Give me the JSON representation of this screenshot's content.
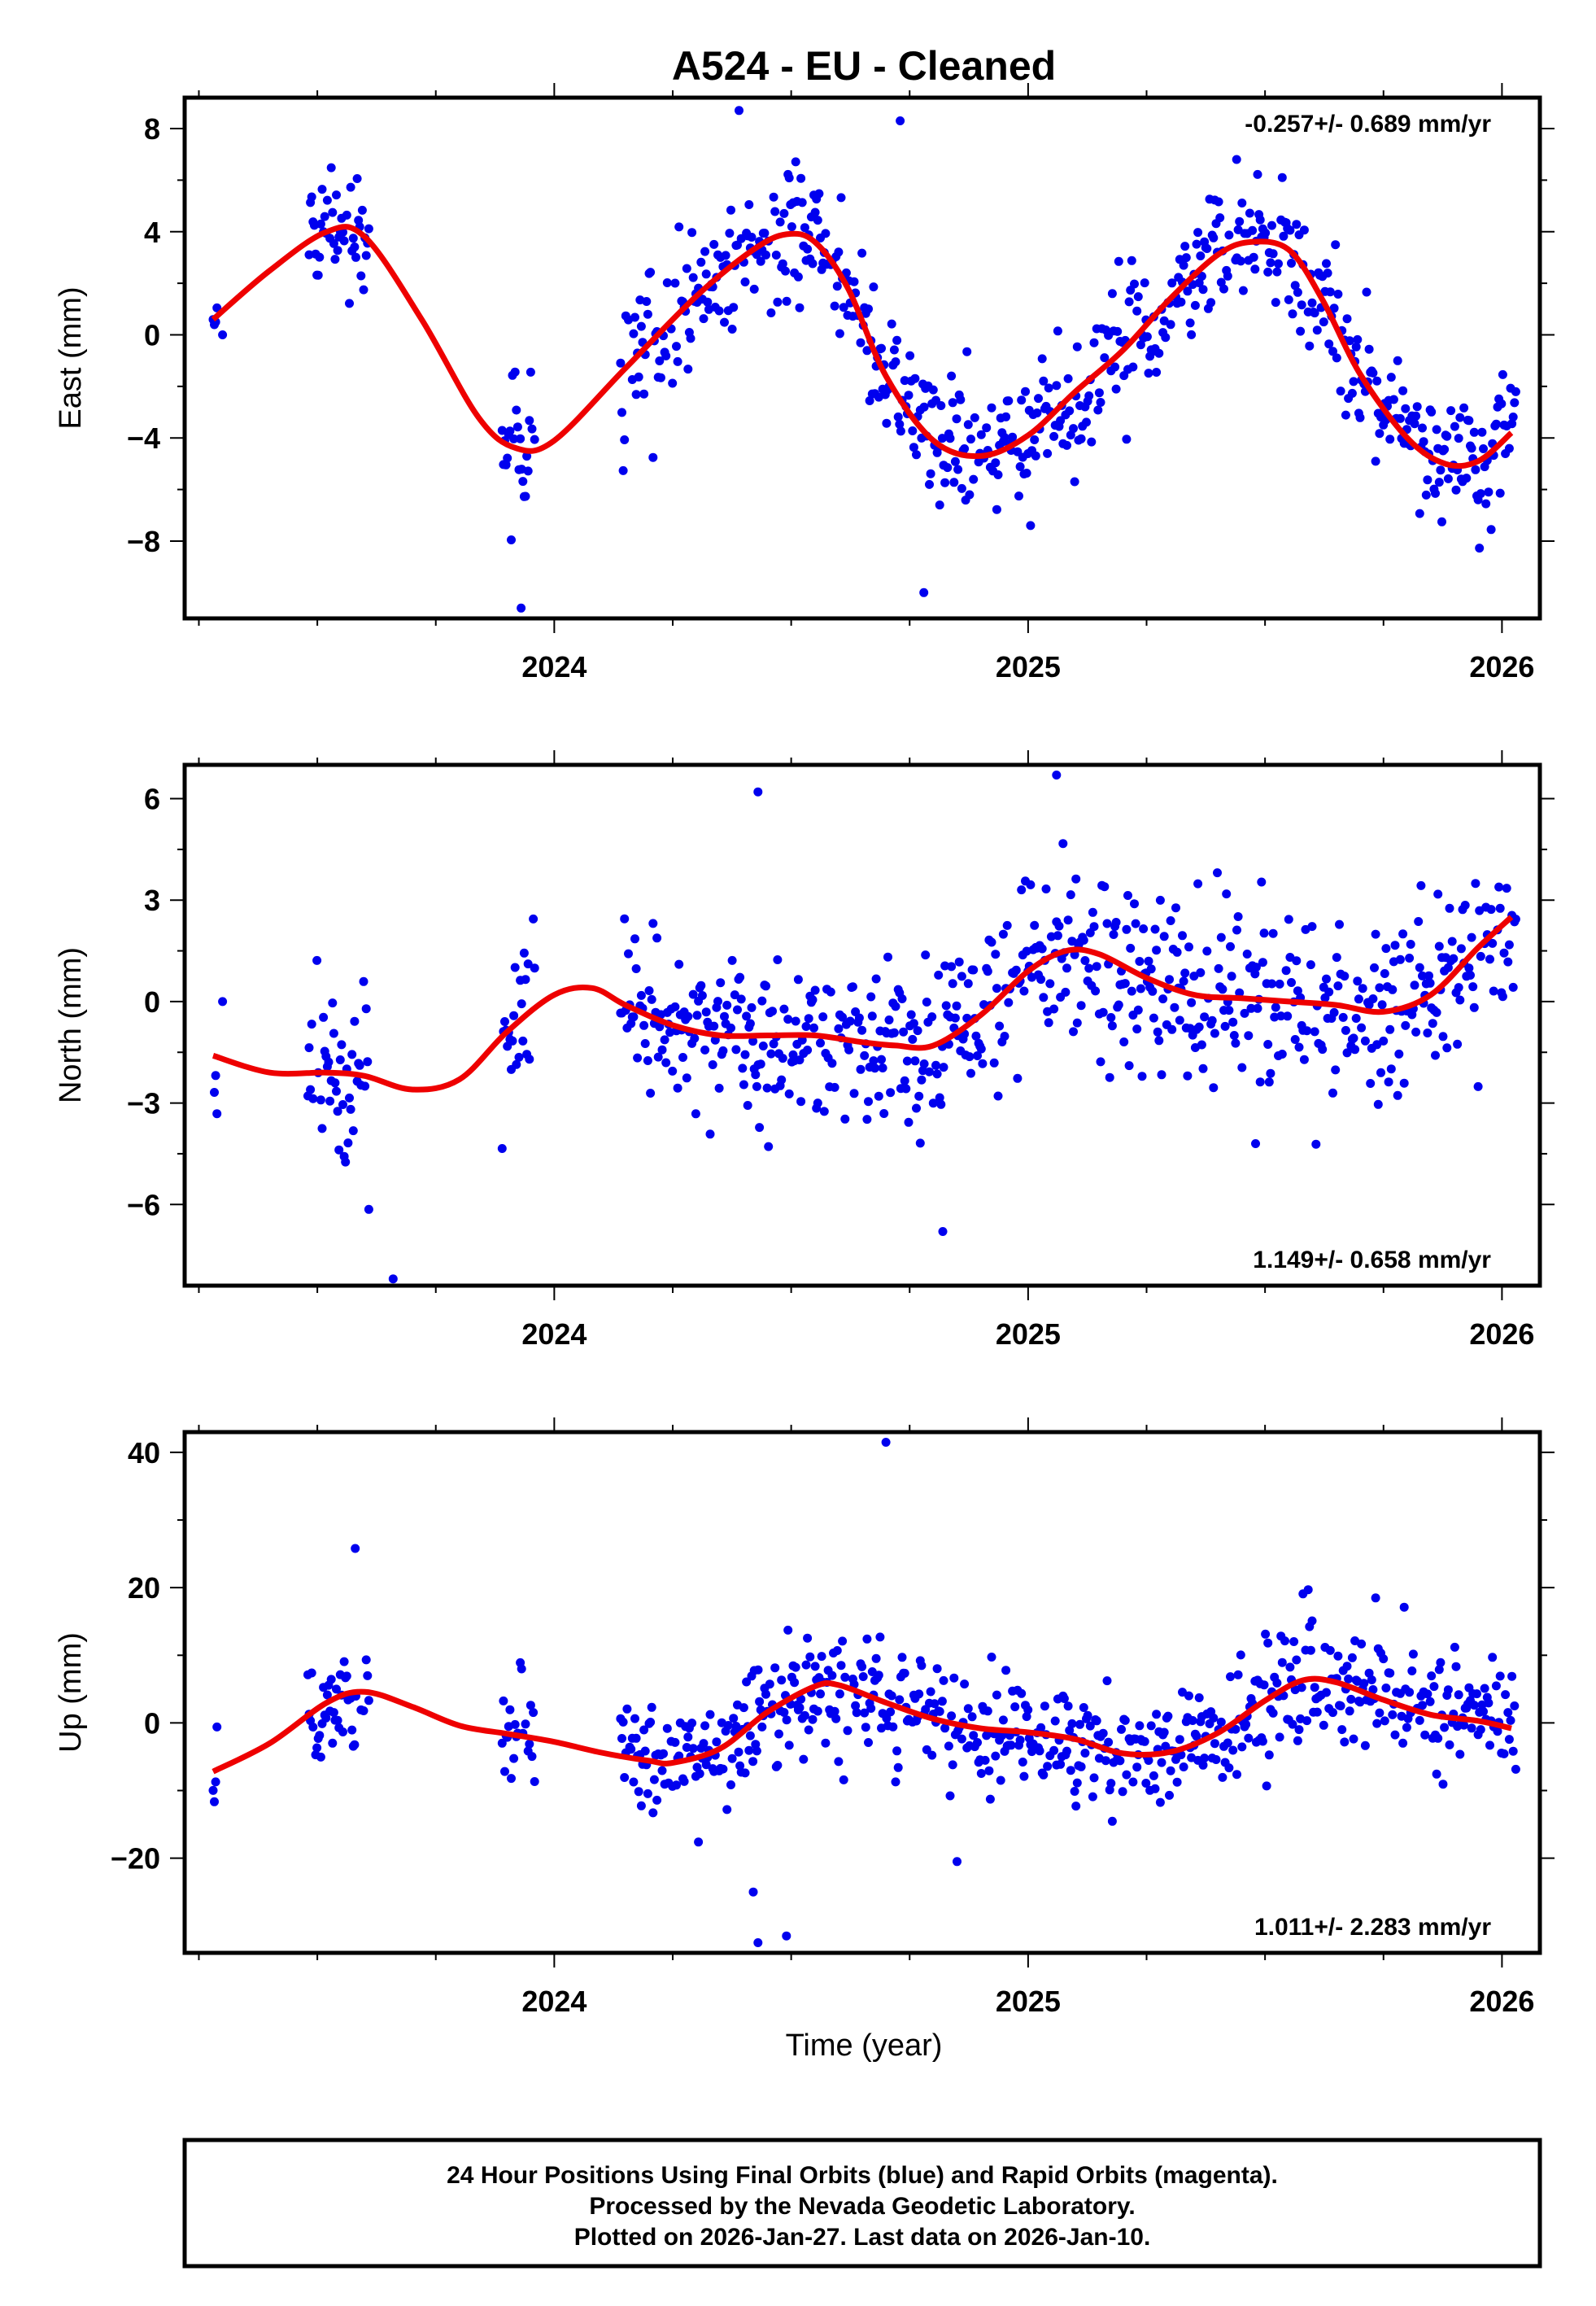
{
  "title": "A524  - EU - Cleaned",
  "xlabel": "Time (year)",
  "x_ticks": [
    "2024",
    "2025",
    "2026"
  ],
  "footer": {
    "line1": "24 Hour Positions Using Final Orbits (blue) and Rapid Orbits (magenta).",
    "line2": "Processed by the Nevada Geodetic Laboratory.",
    "line3": "Plotted on 2026-Jan-27. Last data on 2026-Jan-10."
  },
  "colors": {
    "points": "#0000ee",
    "fit": "#ee0000",
    "axis": "#000000"
  },
  "chart_data": [
    {
      "type": "scatter",
      "component": "East",
      "ylabel": "East (mm)",
      "unit": "mm",
      "xlim": [
        2023.22,
        2026.08
      ],
      "ylim": [
        -11,
        9.2
      ],
      "y_ticks": [
        8,
        4,
        0,
        -4,
        -8
      ],
      "rate_label": "-0.257+/- 0.689 mm/yr",
      "rate_position": "top-right",
      "series": [
        {
          "name": "Daily positions (final orbits)",
          "segments": [
            [
              2023.28,
              2023.29
            ],
            [
              2023.48,
              2023.61
            ],
            [
              2023.89,
              2023.96
            ],
            [
              2024.14,
              2026.03
            ]
          ],
          "noise_mm": 1.3,
          "outliers": [
            [
              2023.3,
              0.0
            ],
            [
              2024.39,
              8.7
            ],
            [
              2024.73,
              8.3
            ],
            [
              2024.78,
              -10.0
            ],
            [
              2023.93,
              -10.6
            ],
            [
              2025.44,
              6.8
            ]
          ]
        },
        {
          "name": "Model fit",
          "x": [
            2023.28,
            2023.4,
            2023.52,
            2023.6,
            2023.72,
            2023.84,
            2023.92,
            2024.0,
            2024.15,
            2024.3,
            2024.42,
            2024.49,
            2024.55,
            2024.62,
            2024.7,
            2024.8,
            2024.9,
            2025.0,
            2025.1,
            2025.2,
            2025.3,
            2025.4,
            2025.47,
            2025.55,
            2025.62,
            2025.7,
            2025.8,
            2025.88,
            2025.95,
            2026.02
          ],
          "y": [
            0.6,
            2.5,
            4.0,
            3.8,
            0.6,
            -3.2,
            -4.4,
            -4.1,
            -1.3,
            1.5,
            3.3,
            3.9,
            3.6,
            1.8,
            -1.6,
            -4.1,
            -4.7,
            -3.9,
            -2.2,
            -0.6,
            1.4,
            3.1,
            3.6,
            3.3,
            1.4,
            -1.5,
            -4.0,
            -5.0,
            -4.9,
            -3.8
          ]
        }
      ]
    },
    {
      "type": "scatter",
      "component": "North",
      "ylabel": "North (mm)",
      "unit": "mm",
      "xlim": [
        2023.22,
        2026.08
      ],
      "ylim": [
        -8.4,
        7.0
      ],
      "y_ticks": [
        6,
        3,
        0,
        -3,
        -6
      ],
      "rate_label": "1.149+/- 0.658 mm/yr",
      "rate_position": "bottom-right",
      "series": [
        {
          "name": "Daily positions (final orbits)",
          "segments": [
            [
              2023.28,
              2023.29
            ],
            [
              2023.48,
              2023.61
            ],
            [
              2023.89,
              2023.96
            ],
            [
              2024.14,
              2026.03
            ]
          ],
          "noise_mm": 1.3,
          "outliers": [
            [
              2023.3,
              0.0
            ],
            [
              2024.43,
              6.2
            ],
            [
              2025.06,
              6.7
            ],
            [
              2024.82,
              -6.8
            ],
            [
              2023.66,
              -8.2
            ],
            [
              2025.48,
              -4.2
            ]
          ]
        },
        {
          "name": "Model fit",
          "x": [
            2023.28,
            2023.4,
            2023.52,
            2023.6,
            2023.7,
            2023.8,
            2023.9,
            2024.0,
            2024.08,
            2024.15,
            2024.25,
            2024.35,
            2024.45,
            2024.55,
            2024.65,
            2024.72,
            2024.8,
            2024.9,
            2025.0,
            2025.08,
            2025.15,
            2025.25,
            2025.35,
            2025.45,
            2025.55,
            2025.65,
            2025.75,
            2025.85,
            2025.95,
            2026.02
          ],
          "y": [
            -1.6,
            -2.1,
            -2.1,
            -2.2,
            -2.6,
            -2.3,
            -0.9,
            0.2,
            0.4,
            -0.1,
            -0.7,
            -1.0,
            -1.0,
            -1.0,
            -1.2,
            -1.3,
            -1.3,
            -0.4,
            0.9,
            1.5,
            1.4,
            0.7,
            0.2,
            0.1,
            0.0,
            -0.1,
            -0.3,
            0.2,
            1.6,
            2.5
          ]
        }
      ]
    },
    {
      "type": "scatter",
      "component": "Up",
      "ylabel": "Up (mm)",
      "unit": "mm",
      "xlim": [
        2023.22,
        2026.08
      ],
      "ylim": [
        -34,
        43
      ],
      "y_ticks": [
        40,
        20,
        0,
        -20
      ],
      "rate_label": "1.011+/- 2.283 mm/yr",
      "rate_position": "bottom-right",
      "series": [
        {
          "name": "Daily positions (final orbits)",
          "segments": [
            [
              2023.28,
              2023.29
            ],
            [
              2023.48,
              2023.61
            ],
            [
              2023.89,
              2023.96
            ],
            [
              2024.14,
              2026.03
            ]
          ],
          "noise_mm": 4.5,
          "outliers": [
            [
              2024.7,
              41.5
            ],
            [
              2023.58,
              25.8
            ],
            [
              2024.43,
              -32.5
            ],
            [
              2024.49,
              -31.5
            ],
            [
              2024.42,
              -25.0
            ],
            [
              2024.85,
              -20.5
            ]
          ]
        },
        {
          "name": "Model fit",
          "x": [
            2023.28,
            2023.4,
            2023.52,
            2023.6,
            2023.7,
            2023.8,
            2023.9,
            2024.0,
            2024.1,
            2024.2,
            2024.25,
            2024.35,
            2024.45,
            2024.55,
            2024.6,
            2024.7,
            2024.8,
            2024.9,
            2025.0,
            2025.1,
            2025.2,
            2025.3,
            2025.4,
            2025.5,
            2025.58,
            2025.65,
            2025.75,
            2025.85,
            2025.95,
            2026.02
          ],
          "y": [
            -7.2,
            -3.0,
            3.0,
            4.6,
            2.4,
            -0.4,
            -1.6,
            -2.8,
            -4.4,
            -5.6,
            -5.9,
            -3.8,
            1.6,
            5.4,
            5.6,
            3.0,
            0.6,
            -0.8,
            -1.4,
            -2.4,
            -4.5,
            -4.3,
            -1.5,
            3.3,
            6.3,
            6.0,
            3.4,
            1.2,
            0.3,
            -0.8
          ]
        }
      ]
    }
  ]
}
